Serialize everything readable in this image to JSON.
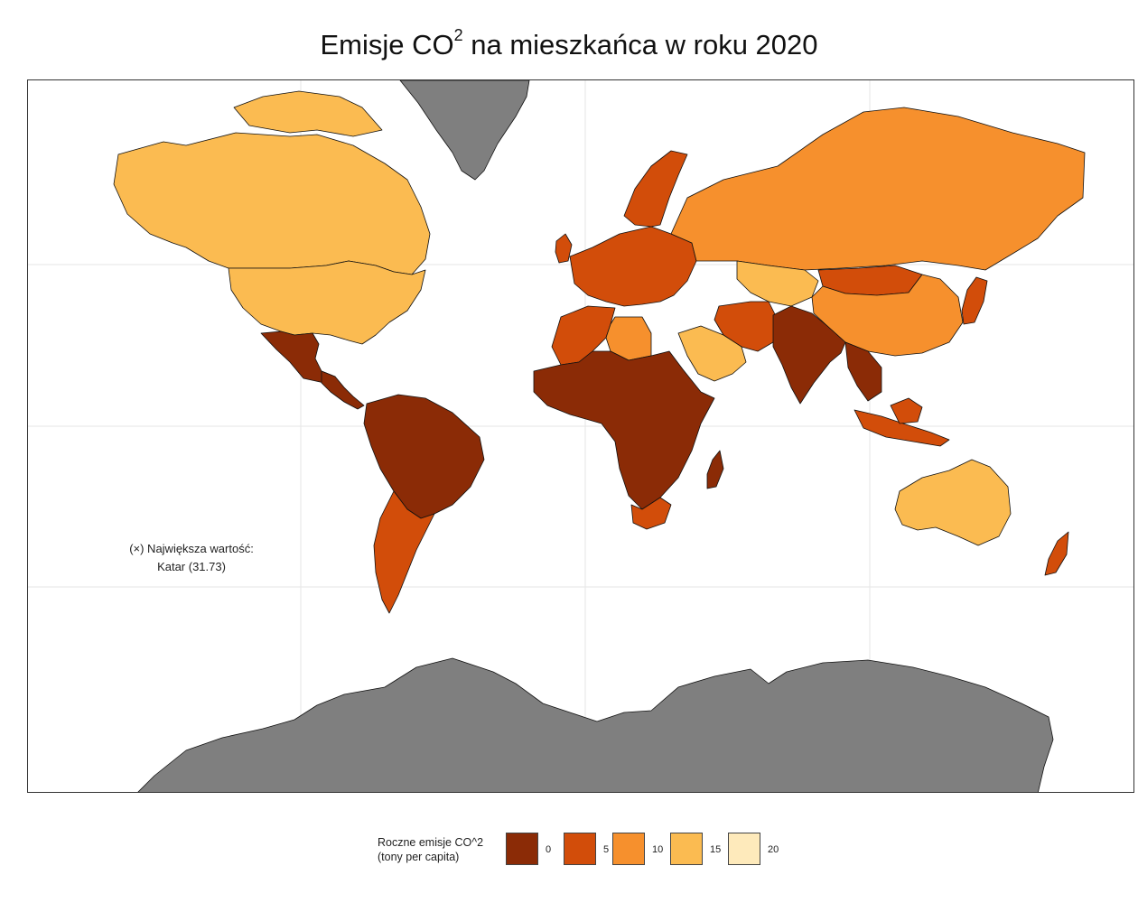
{
  "title": {
    "prefix": "Emisje CO",
    "superscript": "2",
    "suffix": " na mieszkańca w roku 2020"
  },
  "annotation": {
    "line1": "(×) Największa wartość:",
    "line2": "Katar (31.73)"
  },
  "legend": {
    "title_line1": "Roczne emisje CO^2",
    "title_line2": "(tony per capita)",
    "items": [
      {
        "label": "0",
        "color": "#8b2b06"
      },
      {
        "label": "5",
        "color": "#d24d0a"
      },
      {
        "label": "10",
        "color": "#f6902d"
      },
      {
        "label": "15",
        "color": "#fbbb51"
      },
      {
        "label": "20",
        "color": "#feeabb"
      }
    ]
  },
  "colors": {
    "ocean": "#ffffff",
    "grid": "#e6e6e6",
    "no_data": "#7f7f7f",
    "border": "#111111"
  },
  "regions": [
    {
      "name": "Canada",
      "band": "15"
    },
    {
      "name": "United States",
      "band": "15"
    },
    {
      "name": "Greenland",
      "band": "no-data"
    },
    {
      "name": "Mexico",
      "band": "0"
    },
    {
      "name": "Central America",
      "band": "0"
    },
    {
      "name": "South America",
      "band": "0"
    },
    {
      "name": "Argentina",
      "band": "5"
    },
    {
      "name": "Chile",
      "band": "5"
    },
    {
      "name": "Western Europe",
      "band": "5"
    },
    {
      "name": "Scandinavia",
      "band": "5"
    },
    {
      "name": "Russia",
      "band": "10"
    },
    {
      "name": "Kazakhstan",
      "band": "15"
    },
    {
      "name": "China",
      "band": "10"
    },
    {
      "name": "Mongolia",
      "band": "5"
    },
    {
      "name": "Saudi Arabia",
      "band": "15"
    },
    {
      "name": "Iran",
      "band": "5"
    },
    {
      "name": "Libya",
      "band": "10"
    },
    {
      "name": "North Africa",
      "band": "5"
    },
    {
      "name": "Sub-Saharan Africa",
      "band": "0"
    },
    {
      "name": "South Africa",
      "band": "5"
    },
    {
      "name": "India",
      "band": "0"
    },
    {
      "name": "Southeast Asia",
      "band": "0"
    },
    {
      "name": "Indonesia",
      "band": "5"
    },
    {
      "name": "Japan",
      "band": "5"
    },
    {
      "name": "Australia",
      "band": "15"
    },
    {
      "name": "New Zealand",
      "band": "5"
    },
    {
      "name": "Antarctica",
      "band": "no-data"
    }
  ]
}
